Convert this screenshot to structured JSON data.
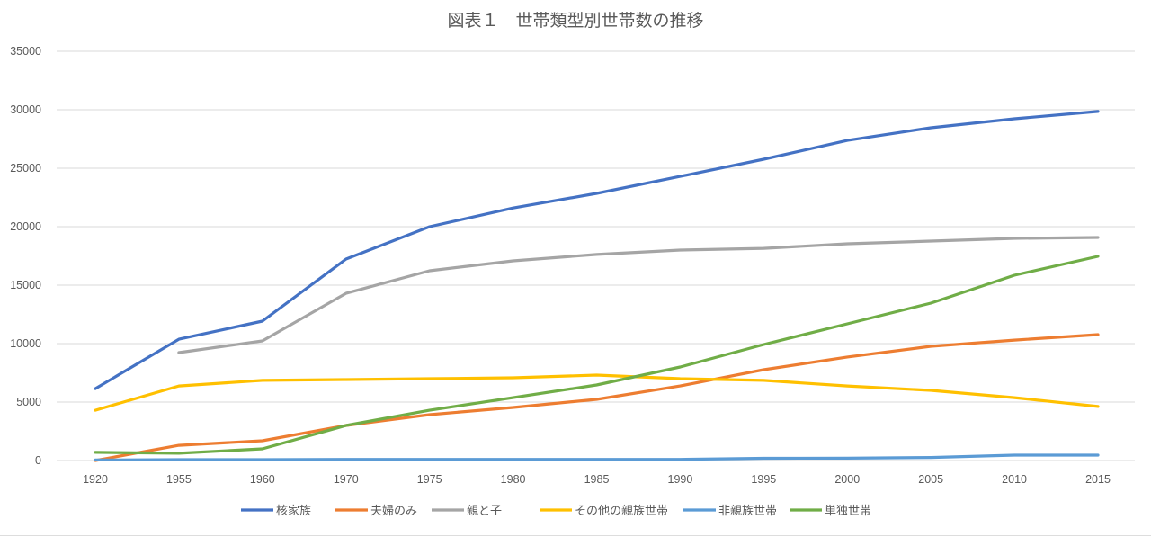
{
  "chart_data": {
    "type": "line",
    "title": "図表１　世帯類型別世帯数の推移",
    "xlabel": "",
    "ylabel": "",
    "ylim": [
      0,
      35000
    ],
    "yticks": [
      0,
      5000,
      10000,
      15000,
      20000,
      25000,
      30000,
      35000
    ],
    "grid": true,
    "legend_position": "bottom",
    "categories": [
      "1920",
      "1955",
      "1960",
      "1970",
      "1975",
      "1980",
      "1985",
      "1990",
      "1995",
      "2000",
      "2005",
      "2010",
      "2015"
    ],
    "series": [
      {
        "name": "核家族",
        "color": "#4472C4",
        "values": [
          6150,
          10380,
          11920,
          17230,
          20000,
          21600,
          22850,
          24300,
          25770,
          27380,
          28460,
          29230,
          29850
        ]
      },
      {
        "name": "夫婦のみ",
        "color": "#ED7D31",
        "values": [
          0,
          1300,
          1690,
          3000,
          3920,
          4540,
          5230,
          6380,
          7770,
          8850,
          9770,
          10300,
          10770
        ]
      },
      {
        "name": "親と子",
        "color": "#A5A5A5",
        "values": [
          null,
          9230,
          10230,
          14300,
          16230,
          17080,
          17620,
          18000,
          18150,
          18540,
          18770,
          19000,
          19080
        ]
      },
      {
        "name": "その他の親族世帯",
        "color": "#FFC000",
        "values": [
          4300,
          6380,
          6850,
          6920,
          7000,
          7080,
          7310,
          7000,
          6850,
          6380,
          6000,
          5380,
          4620
        ]
      },
      {
        "name": "非親族世帯",
        "color": "#5B9BD5",
        "values": [
          50,
          80,
          80,
          100,
          100,
          100,
          100,
          100,
          190,
          200,
          260,
          460,
          460
        ]
      },
      {
        "name": "単独世帯",
        "color": "#70AD47",
        "values": [
          700,
          620,
          1000,
          3000,
          4300,
          5380,
          6460,
          8000,
          9920,
          11690,
          13460,
          15850,
          17460
        ]
      }
    ]
  }
}
